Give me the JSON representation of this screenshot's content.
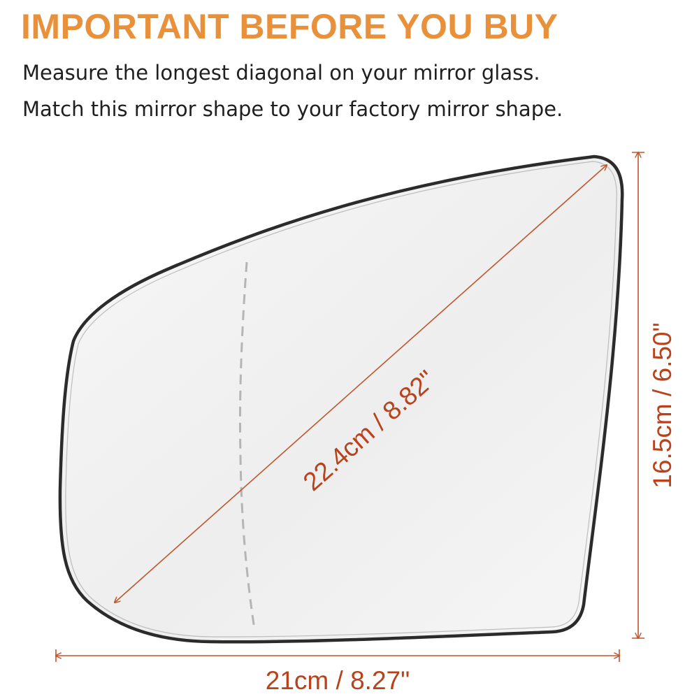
{
  "header": {
    "title": "IMPORTANT BEFORE YOU BUY",
    "instructions": [
      "Measure the longest diagonal on your mirror glass.",
      "Match this mirror shape to your factory mirror shape."
    ]
  },
  "mirror": {
    "dimensions": {
      "diagonal": "22.4cm / 8.82\"",
      "height": "16.5cm / 6.50\"",
      "width": "21cm / 8.27\""
    }
  },
  "colors": {
    "title": "#e8913a",
    "dimension_text": "#b8421b",
    "dimension_line": "#c0562c",
    "mirror_outline": "#2b2b2b",
    "mirror_fill": "#f3f3f3",
    "heating_line": "#b5b5b5"
  }
}
